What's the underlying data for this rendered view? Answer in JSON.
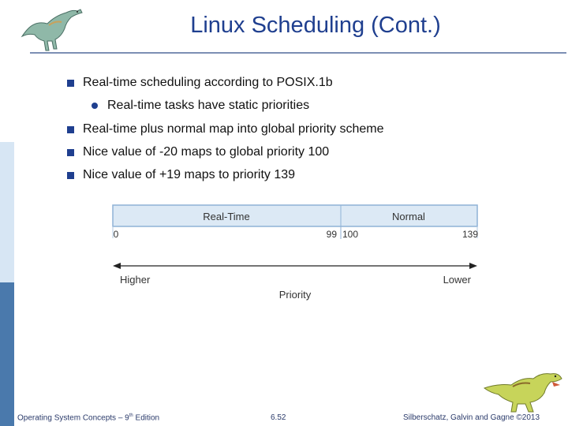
{
  "slide": {
    "title": "Linux Scheduling (Cont.)",
    "bullets": [
      {
        "level": 1,
        "text": "Real-time scheduling according to POSIX.1b"
      },
      {
        "level": 2,
        "text": "Real-time tasks have static priorities"
      },
      {
        "level": 1,
        "text": "Real-time plus normal map into global priority scheme"
      },
      {
        "level": 1,
        "text": "Nice value of -20 maps to global priority 100"
      },
      {
        "level": 1,
        "text": "Nice value of +19 maps to priority 139"
      }
    ]
  },
  "diagram": {
    "realtime_label": "Real-Time",
    "normal_label": "Normal",
    "tick_start": "0",
    "tick_99": "99",
    "tick_100": "100",
    "tick_end": "139",
    "higher_label": "Higher",
    "lower_label": "Lower",
    "axis_label": "Priority"
  },
  "footer": {
    "book_prefix": "Operating System Concepts – 9",
    "book_sup": "th",
    "book_suffix": " Edition",
    "page": "6.52",
    "copyright": "Silberschatz, Galvin and Gagne ©2013"
  },
  "colors": {
    "title": "#1f3f8f",
    "bullet": "#1f3f8f",
    "bar_fill": "#dce9f5",
    "bar_border": "#8fb2d6"
  },
  "icons": [
    "dinosaur-logo-icon",
    "dinosaur-mascot-icon"
  ]
}
